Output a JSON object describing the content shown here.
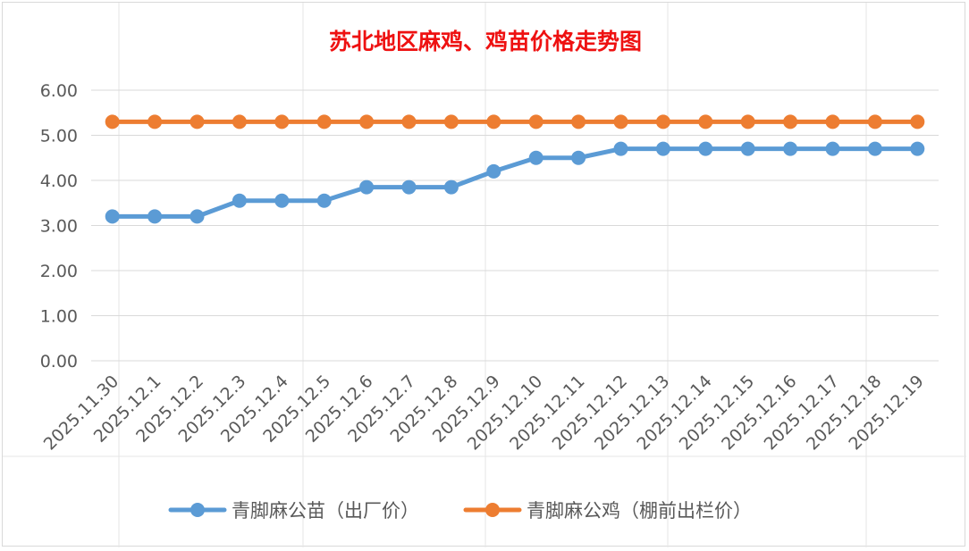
{
  "chart_data": {
    "type": "line",
    "title": "苏北地区麻鸡、鸡苗价格走势图",
    "xlabel": "",
    "ylabel": "",
    "ylim": [
      0,
      6
    ],
    "yticks": [
      "0.00",
      "1.00",
      "2.00",
      "3.00",
      "4.00",
      "5.00",
      "6.00"
    ],
    "grid": true,
    "legend_position": "bottom",
    "categories": [
      "2025.11.30",
      "2025.12.1",
      "2025.12.2",
      "2025.12.3",
      "2025.12.4",
      "2025.12.5",
      "2025.12.6",
      "2025.12.7",
      "2025.12.8",
      "2025.12.9",
      "2025.12.10",
      "2025.12.11",
      "2025.12.12",
      "2025.12.13",
      "2025.12.14",
      "2025.12.15",
      "2025.12.16",
      "2025.12.17",
      "2025.12.18",
      "2025.12.19"
    ],
    "series": [
      {
        "name": "青脚麻公苗（出厂价）",
        "color": "#5b9bd5",
        "values": [
          3.2,
          3.2,
          3.2,
          3.55,
          3.55,
          3.55,
          3.85,
          3.85,
          3.85,
          4.2,
          4.5,
          4.5,
          4.7,
          4.7,
          4.7,
          4.7,
          4.7,
          4.7,
          4.7,
          4.7
        ]
      },
      {
        "name": "青脚麻公鸡（棚前出栏价）",
        "color": "#ed7d31",
        "values": [
          5.3,
          5.3,
          5.3,
          5.3,
          5.3,
          5.3,
          5.3,
          5.3,
          5.3,
          5.3,
          5.3,
          5.3,
          5.3,
          5.3,
          5.3,
          5.3,
          5.3,
          5.3,
          5.3,
          5.3
        ]
      }
    ]
  }
}
